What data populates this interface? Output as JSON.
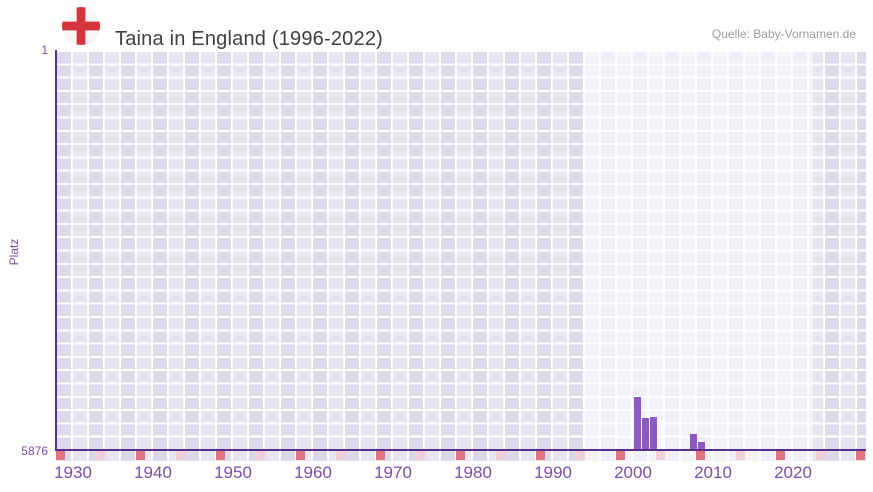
{
  "header": {
    "title": "Taina in England (1996-2022)",
    "source": "Quelle: Baby-Vornamen.de"
  },
  "chart_data": {
    "type": "bar",
    "title": "Taina in England (1996-2022)",
    "ylabel": "Platz",
    "y_axis": {
      "top_label": "1",
      "bottom_label": "5876",
      "min": 1,
      "max": 5876,
      "inverted": true
    },
    "x_axis": {
      "range": [
        1928,
        2029
      ],
      "tick_labels": [
        1930,
        1940,
        1950,
        1960,
        1970,
        1980,
        1990,
        2000,
        2010,
        2020
      ],
      "minor_tick_interval_years": 5
    },
    "highlight_period": {
      "from": 1994,
      "to": 2022.5
    },
    "bars": [
      {
        "year": 2000,
        "rank": 5115
      },
      {
        "year": 2001,
        "rank": 5420
      },
      {
        "year": 2002,
        "rank": 5400
      },
      {
        "year": 2007,
        "rank": 5655
      },
      {
        "year": 2008,
        "rank": 5772
      }
    ],
    "colors": {
      "bar": "#8d59c5",
      "axis": "#543088",
      "labels": "#7b4fa6",
      "cell_dark": "#ded9ec",
      "cell_light": "#e8e5f0",
      "gridline": "#ffffff",
      "minor_tick_dark": "#e2737f",
      "minor_tick_light": "#f4ced7",
      "title_text": "#3f3f3f",
      "source_text": "#9c9c9c",
      "flag_red": "#d5333e"
    }
  }
}
